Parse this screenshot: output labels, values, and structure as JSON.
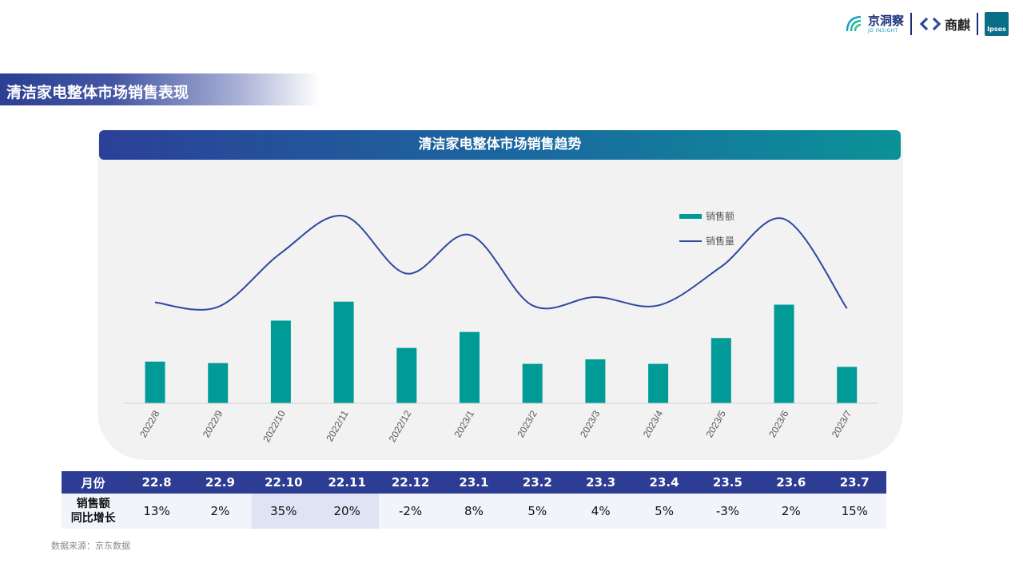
{
  "page_title": "清洁家电整体市场销售表现",
  "logos": {
    "jd_cn": "京洞察",
    "jd_en": "JD INSIGHT",
    "shangqi": "商麒",
    "ipsos": "Ipsos"
  },
  "chart_data": {
    "type": "bar+line",
    "title": "清洁家电整体市场销售趋势",
    "categories": [
      "2022/8",
      "2022/9",
      "2022/10",
      "2022/11",
      "2022/12",
      "2023/1",
      "2023/2",
      "2023/3",
      "2023/4",
      "2023/5",
      "2023/6",
      "2023/7"
    ],
    "series": [
      {
        "name": "销售额",
        "type": "bar",
        "color": "#009b97",
        "values": [
          55,
          53,
          109,
          134,
          73,
          94,
          52,
          58,
          52,
          86,
          130,
          48
        ]
      },
      {
        "name": "销售量",
        "type": "line",
        "color": "#2f48a0",
        "values": [
          133,
          127,
          198,
          247,
          171,
          222,
          129,
          140,
          129,
          180,
          243,
          125
        ]
      }
    ],
    "ylim": [
      0,
      270
    ],
    "legend": "top-right",
    "grid": false
  },
  "table": {
    "header_label": "月份",
    "months": [
      "22.8",
      "22.9",
      "22.10",
      "22.11",
      "22.12",
      "23.1",
      "23.2",
      "23.3",
      "23.4",
      "23.5",
      "23.6",
      "23.7"
    ],
    "row_label_line1": "销售额",
    "row_label_line2": "同比增长",
    "growth": [
      "13%",
      "2%",
      "35%",
      "20%",
      "-2%",
      "8%",
      "5%",
      "4%",
      "5%",
      "-3%",
      "2%",
      "15%"
    ],
    "highlight_color": "#dfe3f4"
  },
  "source": "数据来源：京东数据"
}
